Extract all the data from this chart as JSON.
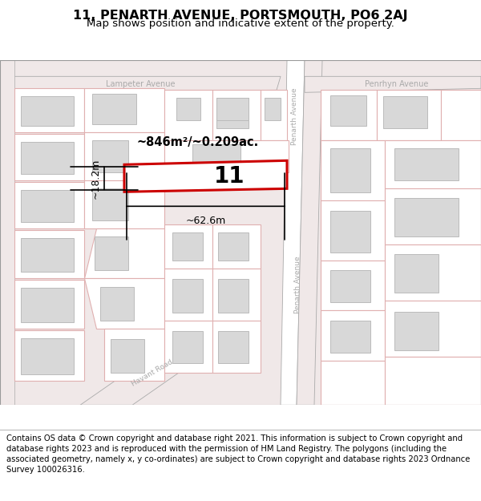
{
  "title": "11, PENARTH AVENUE, PORTSMOUTH, PO6 2AJ",
  "subtitle": "Map shows position and indicative extent of the property.",
  "footer": "Contains OS data © Crown copyright and database right 2021. This information is subject to Crown copyright and database rights 2023 and is reproduced with the permission of HM Land Registry. The polygons (including the associated geometry, namely x, y co-ordinates) are subject to Crown copyright and database rights 2023 Ordnance Survey 100026316.",
  "label_number": "11",
  "area_label": "~846m²/~0.209ac.",
  "dim_width": "~62.6m",
  "dim_height": "~18.2m",
  "street_lampeter": "Lampeter Avenue",
  "street_penrhyn": "Penrhyn Avenue",
  "street_penarth": "Penarth Avenue",
  "street_havant": "Havant Road",
  "title_fontsize": 11.5,
  "subtitle_fontsize": 9.5,
  "footer_fontsize": 7.2,
  "road_bg": "#f0e8e8",
  "parcel_fill": "#ffffff",
  "parcel_edge": "#e0b0b0",
  "building_fill": "#d8d8d8",
  "building_edge": "#bbbbbb",
  "street_color": "#aaaaaa",
  "plot_edge": "#cc0000",
  "dim_color": "#000000"
}
